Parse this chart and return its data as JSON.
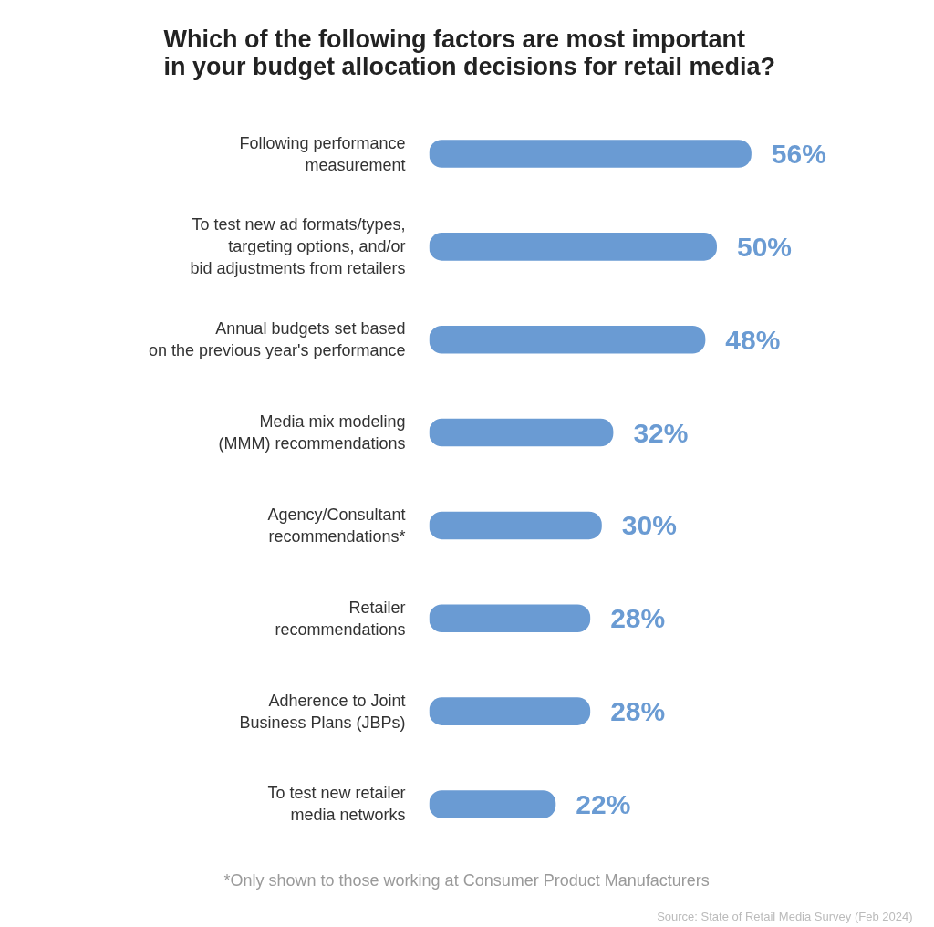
{
  "chart_data": {
    "type": "bar",
    "orientation": "horizontal",
    "title": "Which of the following factors are most important\nin your budget allocation decisions for retail media?",
    "categories": [
      "Following performance\nmeasurement",
      "To test new ad formats/types,\ntargeting options, and/or\nbid adjustments from retailers",
      "Annual budgets set based\non the previous year's performance",
      "Media mix modeling\n(MMM) recommendations",
      "Agency/Consultant\nrecommendations*",
      "Retailer\nrecommendations",
      "Adherence to Joint\nBusiness Plans (JBPs)",
      "To test new retailer\nmedia networks"
    ],
    "values": [
      56,
      50,
      48,
      32,
      30,
      28,
      28,
      22
    ],
    "value_labels": [
      "56%",
      "50%",
      "48%",
      "32%",
      "30%",
      "28%",
      "28%",
      "22%"
    ],
    "color": "#6a9bd3",
    "grid": false,
    "annotations": [
      "*Only shown to those working at Consumer Product Manufacturers",
      "Source: State of Retail Media Survey (Feb 2024)"
    ]
  }
}
